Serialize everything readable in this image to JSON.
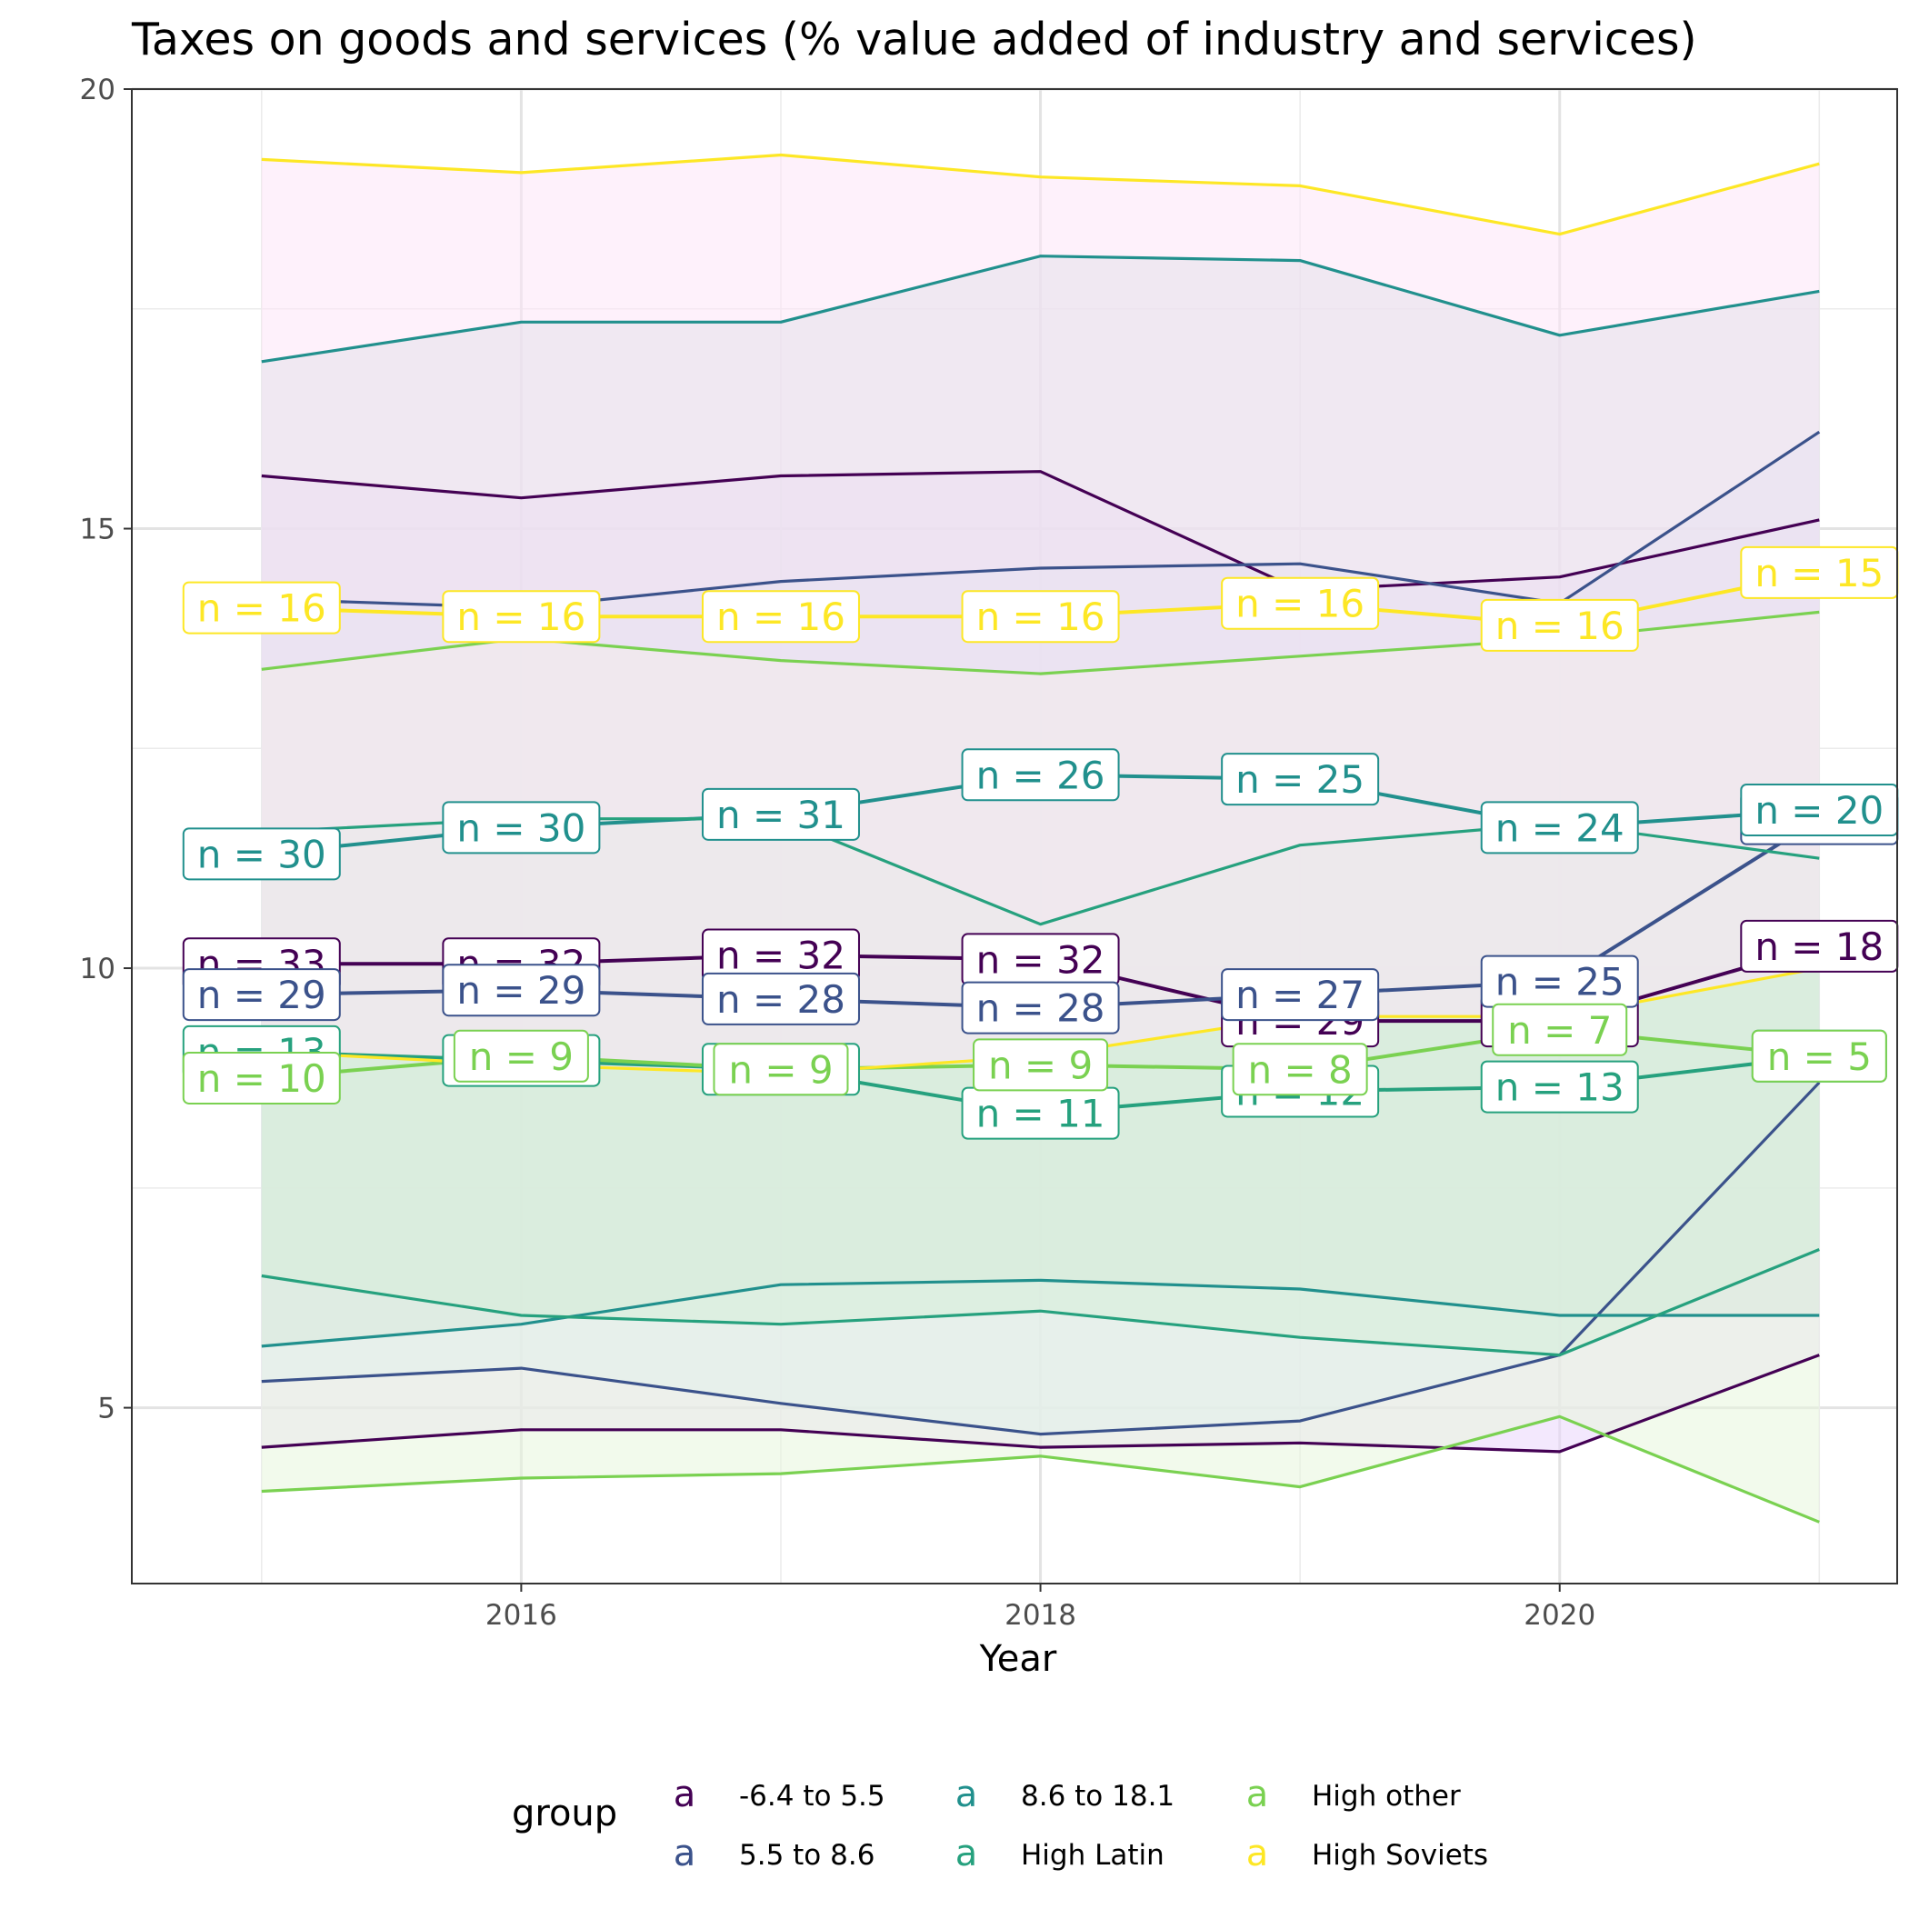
{
  "chart_data": {
    "type": "line",
    "title": "Taxes on goods and services (% value added of industry and services)",
    "xlabel": "Year",
    "ylabel": "",
    "xlim": [
      2014.5,
      2021.3
    ],
    "ylim": [
      3.0,
      20.0
    ],
    "x_ticks": [
      2016,
      2018,
      2020
    ],
    "y_ticks": [
      5,
      10,
      15,
      20
    ],
    "grid": true,
    "legend_position": "bottom",
    "legend_title": "group",
    "legend_key_glyph": "a",
    "x": [
      2015,
      2016,
      2017,
      2018,
      2019,
      2020,
      2021
    ],
    "series": [
      {
        "name": "-6.4 to 5.5",
        "color": "#440154",
        "fill": "#ead5fb",
        "mean": [
          10.05,
          10.05,
          10.15,
          10.1,
          9.4,
          9.4,
          10.25
        ],
        "upper": [
          15.6,
          15.35,
          15.6,
          15.65,
          14.3,
          14.45,
          15.1
        ],
        "lower": [
          4.55,
          4.75,
          4.75,
          4.55,
          4.6,
          4.5,
          5.6
        ],
        "labels": [
          "n = 33",
          "n = 32",
          "n = 32",
          "n = 32",
          "n = 29",
          "n = 29",
          "n = 18"
        ]
      },
      {
        "name": "5.5 to 8.6",
        "color": "#3b528b",
        "fill": "#dde7fb",
        "mean": [
          9.7,
          9.75,
          9.65,
          9.55,
          9.7,
          9.85,
          11.7
        ],
        "upper": [
          14.2,
          14.1,
          14.4,
          14.55,
          14.6,
          14.15,
          16.1
        ],
        "lower": [
          5.3,
          5.45,
          5.05,
          4.7,
          4.85,
          5.6,
          8.7
        ],
        "labels": [
          "n = 29",
          "n = 29",
          "n = 28",
          "n = 28",
          "n = 27",
          "n = 25",
          "n = 16"
        ]
      },
      {
        "name": "8.6 to 18.1",
        "color": "#21908d",
        "fill": "#c9d8dd",
        "mean": [
          11.3,
          11.6,
          11.75,
          12.2,
          12.15,
          11.6,
          11.8
        ],
        "upper": [
          16.9,
          17.35,
          17.35,
          18.1,
          18.05,
          17.2,
          17.7
        ],
        "lower": [
          5.7,
          5.95,
          6.4,
          6.45,
          6.35,
          6.05,
          6.05
        ],
        "labels": [
          "n = 30",
          "n = 30",
          "n = 31",
          "n = 26",
          "n = 25",
          "n = 24",
          "n = 20"
        ]
      },
      {
        "name": "High Latin",
        "color": "#26a17e",
        "fill": "#bfe3d6",
        "mean": [
          9.05,
          8.95,
          8.85,
          8.35,
          8.6,
          8.65,
          9.0
        ],
        "upper": [
          11.55,
          11.7,
          11.7,
          10.5,
          11.4,
          11.65,
          11.25
        ],
        "lower": [
          6.5,
          6.05,
          5.95,
          6.1,
          5.8,
          5.6,
          6.8
        ],
        "labels": [
          "n = 13",
          "n = 12",
          "n = 12",
          "n = 11",
          "n = 12",
          "n = 13",
          "n = 9"
        ]
      },
      {
        "name": "High other",
        "color": "#7ad151",
        "fill": "#e8f5dc",
        "mean": [
          8.75,
          9.0,
          8.85,
          8.9,
          8.85,
          9.3,
          9.0
        ],
        "upper": [
          13.4,
          13.75,
          13.5,
          13.35,
          13.55,
          13.75,
          14.05
        ],
        "lower": [
          4.05,
          4.2,
          4.25,
          4.45,
          4.1,
          4.9,
          3.7
        ],
        "labels": [
          "n = 10",
          "n = 9",
          "n = 9",
          "n = 9",
          "n = 8",
          "n = 7",
          "n = 5"
        ]
      },
      {
        "name": "High Soviets",
        "color": "#fde725",
        "fill": "#fde6f8",
        "mean": [
          14.1,
          14.0,
          14.0,
          14.0,
          14.15,
          13.9,
          14.5
        ],
        "upper": [
          19.2,
          19.05,
          19.25,
          19.0,
          18.9,
          18.35,
          19.15
        ],
        "lower": [
          9.05,
          8.9,
          8.8,
          9.0,
          9.45,
          9.45,
          10.0
        ],
        "labels": [
          "n = 16",
          "n = 16",
          "n = 16",
          "n = 16",
          "n = 16",
          "n = 16",
          "n = 15"
        ]
      }
    ]
  }
}
